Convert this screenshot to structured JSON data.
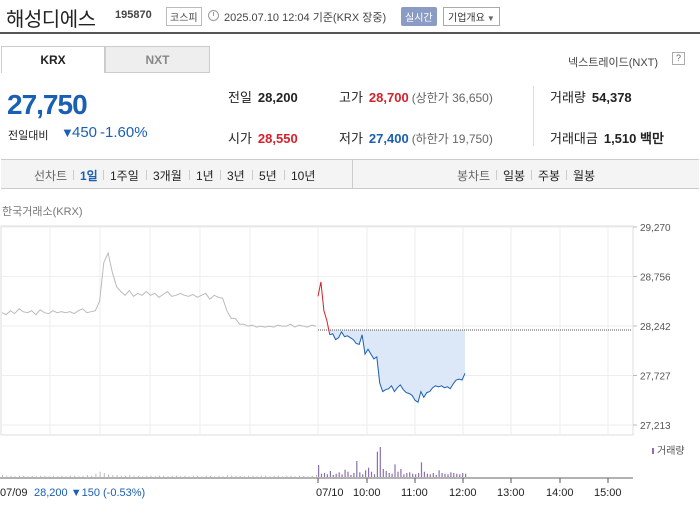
{
  "header": {
    "stock_name": "해성디에스",
    "stock_code": "195870",
    "market": "코스피",
    "update_time": "2025.07.10 12:04 기준(KRX 장중)",
    "realtime": "실시간",
    "company_info": "기업개요"
  },
  "tabs": [
    "KRX",
    "NXT"
  ],
  "nxt_link": "넥스트레이드(NXT)",
  "nxt_icon": "?",
  "price": {
    "current": "27,750",
    "change_label": "전일대비",
    "change_arrow": "▼",
    "change_value": "450",
    "change_pct": "-1.60%"
  },
  "quote": {
    "prev_label": "전일",
    "prev_value": "28,200",
    "high_label": "고가",
    "high_value": "28,700",
    "upper_limit": "(상한가 36,650)",
    "volume_label": "거래량",
    "volume_value": "54,378",
    "open_label": "시가",
    "open_value": "28,550",
    "low_label": "저가",
    "low_value": "27,400",
    "lower_limit": "(하한가 19,750)",
    "amount_label": "거래대금",
    "amount_value": "1,510 백만"
  },
  "period_bar": {
    "line_label": "선차트",
    "line_items": [
      "1일",
      "1주일",
      "3개월",
      "1년",
      "3년",
      "5년",
      "10년"
    ],
    "candle_label": "봉차트",
    "candle_items": [
      "일봉",
      "주봉",
      "월봉"
    ]
  },
  "exchange_label": "한국거래소(KRX)",
  "chart_data": {
    "type": "line",
    "y_ticks": [
      "29,270",
      "28,756",
      "28,242",
      "27,727",
      "27,213"
    ],
    "ylim": [
      27213,
      29270
    ],
    "x_ticks": [
      "10:00",
      "11:00",
      "12:00",
      "13:00",
      "14:00",
      "15:00"
    ],
    "prev_day_label": "07/09",
    "prev_day_info": "28,200 ▼150 (-0.53%)",
    "today_label": "07/10",
    "volume_legend": "거래량",
    "reference_price": 28200,
    "prev_day_series": [
      28380,
      28360,
      28400,
      28370,
      28420,
      28390,
      28380,
      28400,
      28360,
      28410,
      28380,
      28370,
      28400,
      28380,
      28390,
      28380,
      28390,
      28370,
      28400,
      28420,
      28380,
      28390,
      28400,
      28500,
      28900,
      29000,
      28800,
      28650,
      28600,
      28560,
      28610,
      28550,
      28580,
      28560,
      28600,
      28560,
      28580,
      28540,
      28570,
      28600,
      28550,
      28560,
      28580,
      28560,
      28550,
      28570,
      28540,
      28560,
      28580,
      28520,
      28560,
      28540,
      28530,
      28400,
      28320,
      28320,
      28260,
      28260,
      28240,
      28250,
      28230,
      28240,
      28230,
      28240,
      28230,
      28250,
      28240,
      28240,
      28260,
      28230,
      28250,
      28240,
      28230,
      28250,
      28240
    ],
    "today_series": [
      28550,
      28700,
      28400,
      28300,
      28150,
      28160,
      28100,
      28120,
      28180,
      28130,
      28140,
      28120,
      28100,
      28060,
      28050,
      28150,
      27950,
      28000,
      27950,
      27900,
      27920,
      27650,
      27560,
      27580,
      27590,
      27620,
      27560,
      27600,
      27630,
      27580,
      27550,
      27540,
      27520,
      27470,
      27450,
      27560,
      27500,
      27550,
      27560,
      27600,
      27620,
      27610,
      27620,
      27600,
      27610,
      27590,
      27640,
      27680,
      27690,
      27680,
      27750
    ],
    "today_volume": [
      18,
      5,
      6,
      4,
      9,
      3,
      5,
      7,
      4,
      11,
      8,
      3,
      6,
      24,
      7,
      4,
      10,
      14,
      8,
      4,
      38,
      45,
      12,
      9,
      6,
      5,
      19,
      8,
      12,
      4,
      6,
      7,
      5,
      4,
      6,
      22,
      8,
      5,
      4,
      6,
      3,
      10,
      6,
      5,
      4,
      7,
      6,
      5,
      4,
      6,
      5
    ],
    "prev_volume": [
      3,
      2,
      2,
      1,
      2,
      2,
      1,
      2,
      1,
      2,
      2,
      1,
      2,
      1,
      2,
      1,
      2,
      2,
      1,
      2,
      3,
      2,
      5,
      8,
      6,
      4,
      3,
      3,
      2,
      2,
      3,
      2,
      2,
      1,
      2,
      2,
      1,
      2,
      2,
      1,
      2,
      2,
      1,
      2,
      1,
      2,
      2,
      1,
      2,
      2,
      1,
      2,
      1,
      3,
      2,
      2,
      2,
      1,
      2,
      2,
      1,
      2,
      2,
      1,
      2,
      2,
      1,
      2,
      2,
      1,
      2,
      2,
      1,
      2,
      3
    ]
  }
}
